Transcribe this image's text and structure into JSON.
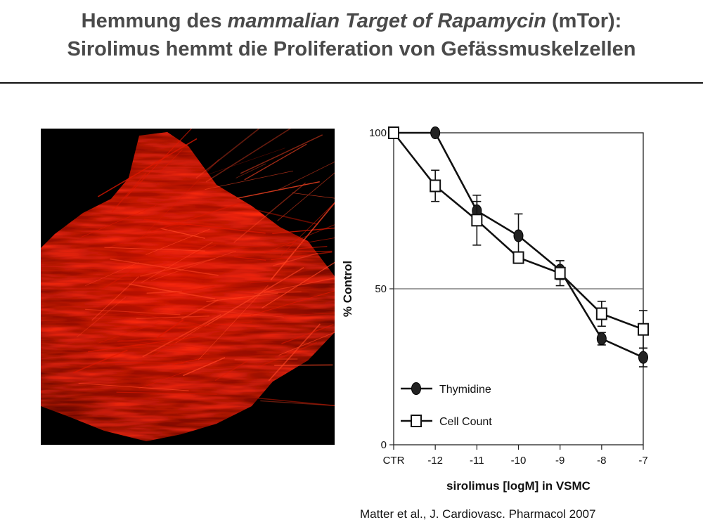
{
  "title": {
    "line1_pre": "Hemmung des ",
    "line1_italic": "mammalian Target of Rapamycin",
    "line1_post": " (mTor):",
    "line2": "Sirolimus hemmt die Proliferation von Gefässmuskelzellen"
  },
  "image": {
    "icon": "fluorescence-micrograph-red"
  },
  "chart_data": {
    "type": "line",
    "x": [
      "CTR",
      "-12",
      "-11",
      "-10",
      "-9",
      "-8",
      "-7"
    ],
    "xlabel": "sirolimus [logM] in VSMC",
    "ylabel": "% Control",
    "ylim": [
      0,
      100
    ],
    "yticks": [
      "0",
      "50",
      "100"
    ],
    "reference_line": 50,
    "grid": false,
    "legend_placement": "bottom-left",
    "series": [
      {
        "name": "Thymidine",
        "marker": "filled-oval",
        "color": "#111111",
        "values": [
          100,
          100,
          75,
          67,
          56,
          34,
          28
        ],
        "error": [
          0,
          0,
          3,
          7,
          3,
          2,
          3
        ]
      },
      {
        "name": "Cell Count",
        "marker": "open-square",
        "color": "#111111",
        "values": [
          100,
          83,
          72,
          60,
          55,
          42,
          37
        ],
        "error": [
          0,
          5,
          8,
          0,
          4,
          4,
          6
        ]
      }
    ]
  },
  "citation": "Matter et al., J. Cardiovasc. Pharmacol 2007"
}
